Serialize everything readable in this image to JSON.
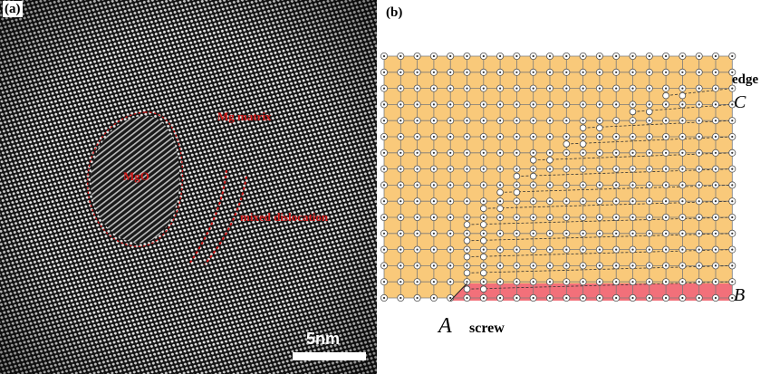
{
  "panel_a": {
    "label": "(a)",
    "annotations": {
      "matrix": "Mg matrix",
      "precipitate": "MgO",
      "dislocation": "mixed dislocation"
    },
    "scale_bar": "5nm",
    "colors": {
      "annotation": "#d01818",
      "background": "#111111"
    }
  },
  "panel_b": {
    "label": "(b)",
    "labels": {
      "edge": "edge",
      "C": "C",
      "B": "B",
      "A": "A",
      "screw": "screw"
    },
    "colors": {
      "lattice_fill": "#f9c97a",
      "slip_fill": "#f2707a",
      "grid_line": "#7a7a7a"
    }
  }
}
